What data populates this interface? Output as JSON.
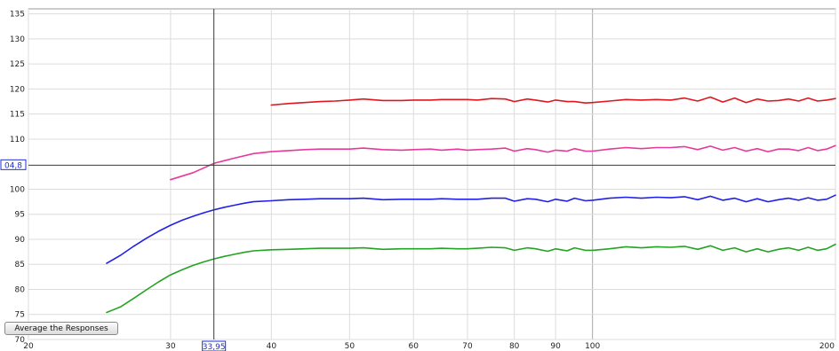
{
  "controls": {
    "average_button_label": "Average the Responses"
  },
  "cursor": {
    "x": 33.95,
    "y": 104.8,
    "x_label": "33,95",
    "y_label": "04,8"
  },
  "colors": {
    "background": "#ffffff",
    "grid_minor": "#dcdcdc",
    "grid_major": "#a8a8a8",
    "cursor_line": "#3a3a3a",
    "cursor_label": "#1d2fd1"
  },
  "chart_data": {
    "type": "line",
    "title": "",
    "xlabel": "",
    "ylabel": "",
    "x_scale": "log",
    "xlim": [
      20,
      200
    ],
    "ylim": [
      70,
      136
    ],
    "x_ticks": [
      20,
      30,
      40,
      50,
      60,
      70,
      80,
      90,
      100,
      200
    ],
    "x_tick_labels": [
      "20",
      "30",
      "40",
      "50",
      "60",
      "70",
      "80",
      "90",
      "100",
      "200"
    ],
    "y_ticks": [
      70,
      75,
      80,
      85,
      90,
      95,
      100,
      110,
      115,
      120,
      125,
      130,
      135
    ],
    "y_tick_labels": [
      "70",
      "75",
      "80",
      "85",
      "90",
      "95",
      "100",
      "110",
      "115",
      "120",
      "125",
      "130",
      "135"
    ],
    "grid": true,
    "legend": "none",
    "series": [
      {
        "color": "#e0161f",
        "x": [
          40,
          42,
          44,
          46,
          48,
          50,
          52,
          55,
          58,
          60,
          63,
          65,
          68,
          70,
          72,
          75,
          78,
          80,
          83,
          85,
          88,
          90,
          93,
          95,
          98,
          100,
          105,
          110,
          115,
          120,
          125,
          130,
          135,
          140,
          145,
          150,
          155,
          160,
          165,
          170,
          175,
          180,
          185,
          190,
          195,
          200
        ],
        "y": [
          116.8,
          117.1,
          117.3,
          117.5,
          117.6,
          117.8,
          118.0,
          117.7,
          117.7,
          117.8,
          117.8,
          117.9,
          117.9,
          117.9,
          117.8,
          118.1,
          118.0,
          117.5,
          118.0,
          117.8,
          117.4,
          117.8,
          117.5,
          117.5,
          117.2,
          117.3,
          117.6,
          117.9,
          117.8,
          117.9,
          117.8,
          118.2,
          117.6,
          118.4,
          117.4,
          118.2,
          117.3,
          118.0,
          117.6,
          117.7,
          118.0,
          117.6,
          118.2,
          117.6,
          117.8,
          118.1
        ]
      },
      {
        "color": "#e8389b",
        "x": [
          30,
          32,
          34,
          36,
          38,
          40,
          42,
          44,
          46,
          48,
          50,
          52,
          55,
          58,
          60,
          63,
          65,
          68,
          70,
          72,
          75,
          78,
          80,
          83,
          85,
          88,
          90,
          93,
          95,
          98,
          100,
          105,
          110,
          115,
          120,
          125,
          130,
          135,
          140,
          145,
          150,
          155,
          160,
          165,
          170,
          175,
          180,
          185,
          190,
          195,
          200
        ],
        "y": [
          101.9,
          103.3,
          105.2,
          106.2,
          107.1,
          107.5,
          107.7,
          107.9,
          108.0,
          108.0,
          108.0,
          108.2,
          107.9,
          107.8,
          107.9,
          108.0,
          107.8,
          108.0,
          107.8,
          107.9,
          108.0,
          108.2,
          107.6,
          108.1,
          107.9,
          107.4,
          107.8,
          107.6,
          108.1,
          107.6,
          107.6,
          108.0,
          108.3,
          108.1,
          108.3,
          108.3,
          108.5,
          107.9,
          108.6,
          107.8,
          108.3,
          107.6,
          108.1,
          107.5,
          108.0,
          108.0,
          107.7,
          108.3,
          107.7,
          108.0,
          108.7
        ]
      },
      {
        "color": "#2020e6",
        "x": [
          25,
          26,
          27,
          28,
          29,
          30,
          31,
          32,
          33,
          34,
          35,
          36,
          37,
          38,
          40,
          42,
          44,
          46,
          48,
          50,
          52,
          55,
          58,
          60,
          63,
          65,
          68,
          70,
          72,
          75,
          78,
          80,
          83,
          85,
          88,
          90,
          93,
          95,
          98,
          100,
          105,
          110,
          115,
          120,
          125,
          130,
          135,
          140,
          145,
          150,
          155,
          160,
          165,
          170,
          175,
          180,
          185,
          190,
          195,
          200
        ],
        "y": [
          85.2,
          86.8,
          88.6,
          90.2,
          91.6,
          92.8,
          93.8,
          94.6,
          95.3,
          95.9,
          96.4,
          96.8,
          97.2,
          97.5,
          97.7,
          97.9,
          98.0,
          98.1,
          98.1,
          98.1,
          98.2,
          97.9,
          98.0,
          98.0,
          98.0,
          98.1,
          98.0,
          98.0,
          98.0,
          98.2,
          98.2,
          97.6,
          98.1,
          98.0,
          97.5,
          98.0,
          97.6,
          98.2,
          97.7,
          97.8,
          98.2,
          98.4,
          98.2,
          98.4,
          98.3,
          98.5,
          97.9,
          98.6,
          97.8,
          98.2,
          97.5,
          98.1,
          97.5,
          97.9,
          98.2,
          97.8,
          98.3,
          97.8,
          98.0,
          98.8
        ]
      },
      {
        "color": "#22a322",
        "x": [
          25,
          26,
          27,
          28,
          29,
          30,
          31,
          32,
          33,
          34,
          35,
          36,
          37,
          38,
          40,
          42,
          44,
          46,
          48,
          50,
          52,
          55,
          58,
          60,
          63,
          65,
          68,
          70,
          72,
          75,
          78,
          80,
          83,
          85,
          88,
          90,
          93,
          95,
          98,
          100,
          105,
          110,
          115,
          120,
          125,
          130,
          135,
          140,
          145,
          150,
          155,
          160,
          165,
          170,
          175,
          180,
          185,
          190,
          195,
          200
        ],
        "y": [
          75.4,
          76.5,
          78.2,
          79.9,
          81.5,
          82.9,
          83.9,
          84.8,
          85.5,
          86.1,
          86.6,
          87.0,
          87.4,
          87.7,
          87.9,
          88.0,
          88.1,
          88.2,
          88.2,
          88.2,
          88.3,
          88.0,
          88.1,
          88.1,
          88.1,
          88.2,
          88.1,
          88.1,
          88.2,
          88.4,
          88.3,
          87.8,
          88.3,
          88.1,
          87.6,
          88.1,
          87.7,
          88.3,
          87.8,
          87.8,
          88.1,
          88.5,
          88.3,
          88.5,
          88.4,
          88.6,
          88.0,
          88.7,
          87.8,
          88.3,
          87.5,
          88.1,
          87.5,
          88.0,
          88.3,
          87.8,
          88.4,
          87.8,
          88.1,
          89.0
        ]
      }
    ]
  }
}
